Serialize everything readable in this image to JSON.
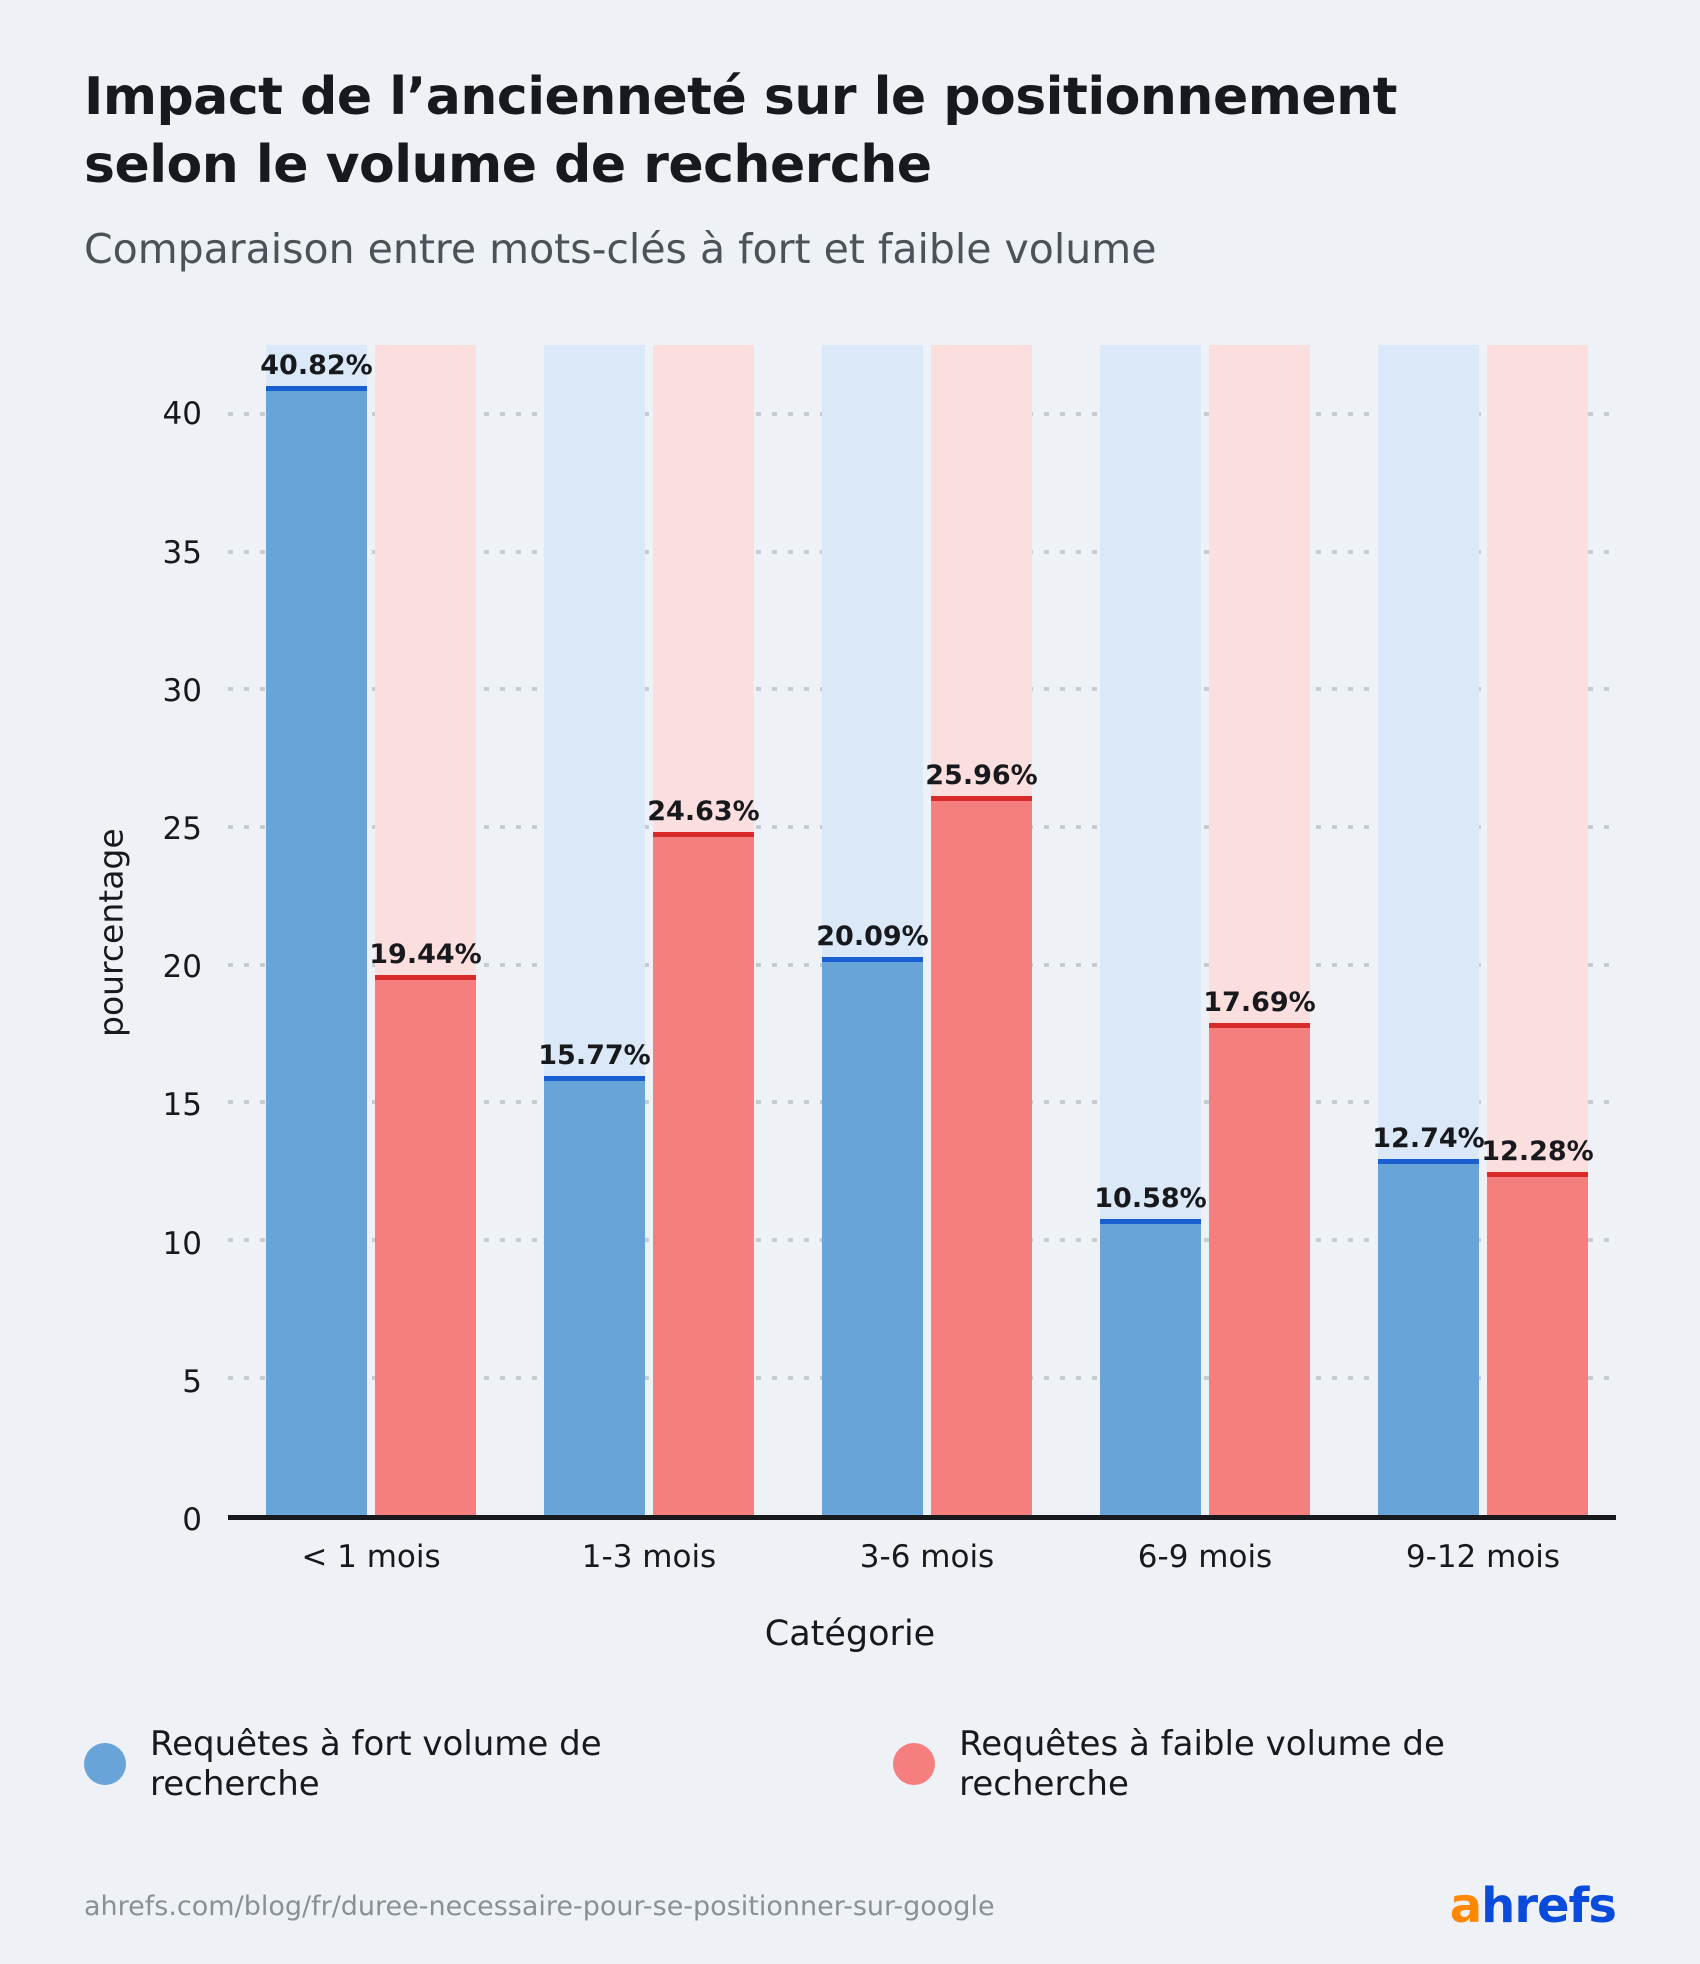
{
  "header": {
    "title_lines": [
      "Impact de l’ancienneté sur le positionnement",
      "selon le volume de recherche"
    ],
    "subtitle": "Comparaison entre mots-clés à fort et faible volume"
  },
  "chart_data": {
    "type": "bar",
    "title": "Impact de l’ancienneté sur le positionnement selon le volume de recherche",
    "subtitle": "Comparaison entre mots-clés à fort et faible volume",
    "categories": [
      "< 1 mois",
      "1-3 mois",
      "3-6 mois",
      "6-9 mois",
      "9-12 mois"
    ],
    "series": [
      {
        "name": "Requêtes à fort volume de recherche",
        "values": [
          40.82,
          15.77,
          20.09,
          10.58,
          12.74
        ],
        "color": "#69a4d9",
        "edge_color": "#1a5fd2",
        "band_color": "#dae8f8"
      },
      {
        "name": "Requêtes à faible volume de recherche",
        "values": [
          19.44,
          24.63,
          25.96,
          17.69,
          12.28
        ],
        "color": "#f57e7e",
        "edge_color": "#d92a2a",
        "band_color": "#fbdfdf"
      }
    ],
    "xlabel": "Catégorie",
    "ylabel": "pourcentage",
    "ylim": [
      0,
      42.5
    ],
    "yticks": [
      0,
      5,
      10,
      15,
      20,
      25,
      30,
      35,
      40
    ],
    "grid": true,
    "legend_position": "bottom",
    "value_suffix": "%"
  },
  "footer": {
    "source_url": "ahrefs.com/blog/fr/duree-necessaire-pour-se-positionner-sur-google",
    "brand_a": "a",
    "brand_rest": "hrefs"
  }
}
